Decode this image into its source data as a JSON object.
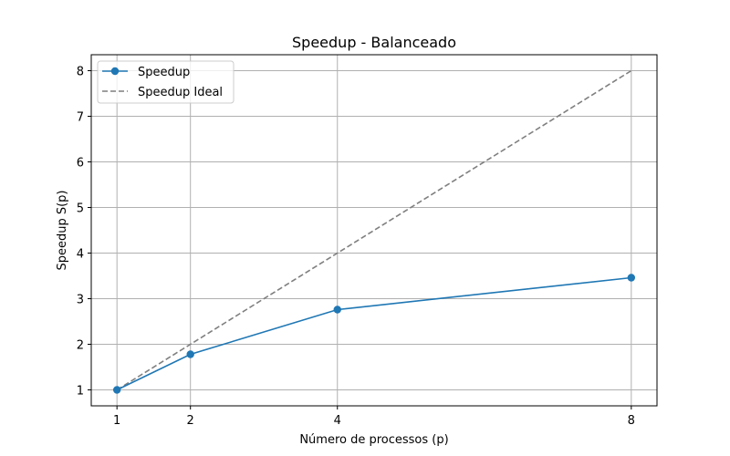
{
  "chart_data": {
    "type": "line",
    "title": "Speedup - Balanceado",
    "xlabel": "Número de processos (p)",
    "ylabel": "Speedup S(p)",
    "x": [
      1,
      2,
      4,
      8
    ],
    "xticks": [
      "1",
      "2",
      "4",
      "8"
    ],
    "yticks": [
      "1",
      "2",
      "3",
      "4",
      "5",
      "6",
      "7",
      "8"
    ],
    "xlim": [
      0.65,
      8.35
    ],
    "ylim": [
      0.65,
      8.35
    ],
    "grid": true,
    "legend_position": "top-left",
    "series": [
      {
        "name": "Speedup",
        "values": [
          1.0,
          1.78,
          2.76,
          3.46
        ],
        "color": "#1f77b4",
        "style": "solid",
        "marker": "circle"
      },
      {
        "name": "Speedup Ideal",
        "values": [
          1,
          2,
          4,
          8
        ],
        "color": "#7f7f7f",
        "style": "dashed",
        "marker": "none"
      }
    ]
  }
}
